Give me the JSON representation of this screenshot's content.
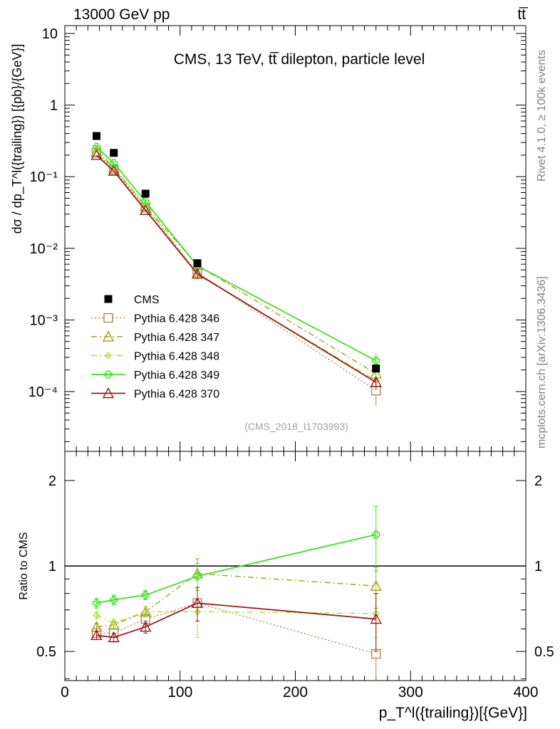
{
  "header": {
    "energy_label": "13000 GeV pp",
    "process_label": "tt̅"
  },
  "side_labels": {
    "rivet": "Rivet 4.1.0, ≥ 100k events",
    "source": "mcplots.cern.ch [arXiv:1306.3436]"
  },
  "chart_data": [
    {
      "type": "line",
      "panel": "main",
      "title": "CMS, 13 TeV, tt̅ dilepton, particle level",
      "analysis_id": "(CMS_2018_I1703993)",
      "ylabel": "dσ / dp_T^l({trailing}) [{pb}/{GeV}]",
      "yscale": "log",
      "xlim": [
        0,
        400
      ],
      "ylim": [
        2e-05,
        15
      ],
      "x_ticks": [
        0,
        100,
        200,
        300,
        400
      ],
      "y_tick_labels": [
        "10⁻⁴",
        "10⁻³",
        "10⁻²",
        "10⁻¹",
        "1",
        "10"
      ],
      "x": [
        27.5,
        42.5,
        70,
        115,
        270
      ],
      "reference": {
        "name": "CMS",
        "color": "#000000",
        "values": [
          0.37,
          0.215,
          0.058,
          0.0062,
          0.00021
        ]
      },
      "series": [
        {
          "name": "Pythia 6.428 346",
          "color": "#b5835a",
          "dash": "2,3",
          "marker": "square",
          "values": [
            0.215,
            0.125,
            0.037,
            0.0046,
            0.000103
          ],
          "err": [
            0,
            0,
            0,
            0.0005,
            4e-05
          ]
        },
        {
          "name": "Pythia 6.428 347",
          "color": "#a0a020",
          "dash": "8,4,2,4",
          "marker": "triangle",
          "values": [
            0.225,
            0.132,
            0.039,
            0.0058,
            0.000178
          ],
          "err": [
            0,
            0,
            0,
            0.0006,
            3e-05
          ]
        },
        {
          "name": "Pythia 6.428 348",
          "color": "#a8e030",
          "dash": "8,4,2,4",
          "marker": "diamond",
          "values": [
            0.25,
            0.135,
            0.04,
            0.0043,
            0.000143
          ],
          "err": [
            0,
            0,
            0,
            0.0008,
            3e-05
          ]
        },
        {
          "name": "Pythia 6.428 349",
          "color": "#40e020",
          "dash": "",
          "marker": "cross",
          "values": [
            0.26,
            0.155,
            0.045,
            0.0057,
            0.00027
          ],
          "err": [
            0,
            0,
            0,
            0.0007,
            7e-05
          ]
        },
        {
          "name": "Pythia 6.428 370",
          "color": "#9a1a1a",
          "dash": "",
          "marker": "triangle",
          "values": [
            0.2,
            0.12,
            0.034,
            0.0044,
            0.000135
          ],
          "err": [
            0,
            0,
            0,
            0.0006,
            3e-05
          ]
        }
      ]
    },
    {
      "type": "line",
      "panel": "ratio",
      "ylabel": "Ratio to CMS",
      "xlabel": "p_T^l({trailing})[{GeV}]",
      "yscale": "log",
      "xlim": [
        0,
        400
      ],
      "ylim": [
        0.4,
        2.4
      ],
      "y_ticks": [
        0.5,
        1,
        2
      ],
      "y_tick_labels": [
        "0.5",
        "1",
        "2"
      ],
      "x": [
        27.5,
        42.5,
        70,
        115,
        270
      ],
      "series": [
        {
          "name": "Pythia 6.428 346",
          "values": [
            0.58,
            0.58,
            0.65,
            0.74,
            0.49
          ],
          "err": [
            0.02,
            0.02,
            0.03,
            0.1,
            0.18
          ]
        },
        {
          "name": "Pythia 6.428 347",
          "values": [
            0.61,
            0.62,
            0.69,
            0.94,
            0.85
          ],
          "err": [
            0.02,
            0.02,
            0.03,
            0.12,
            0.14
          ]
        },
        {
          "name": "Pythia 6.428 348",
          "values": [
            0.67,
            0.63,
            0.69,
            0.69,
            0.68
          ],
          "err": [
            0.02,
            0.02,
            0.03,
            0.13,
            0.12
          ]
        },
        {
          "name": "Pythia 6.428 349",
          "values": [
            0.74,
            0.76,
            0.79,
            0.92,
            1.29
          ],
          "err": [
            0.03,
            0.03,
            0.03,
            0.1,
            0.33
          ]
        },
        {
          "name": "Pythia 6.428 370",
          "values": [
            0.57,
            0.56,
            0.61,
            0.74,
            0.65
          ],
          "err": [
            0.02,
            0.02,
            0.03,
            0.1,
            0.15
          ]
        }
      ]
    }
  ]
}
